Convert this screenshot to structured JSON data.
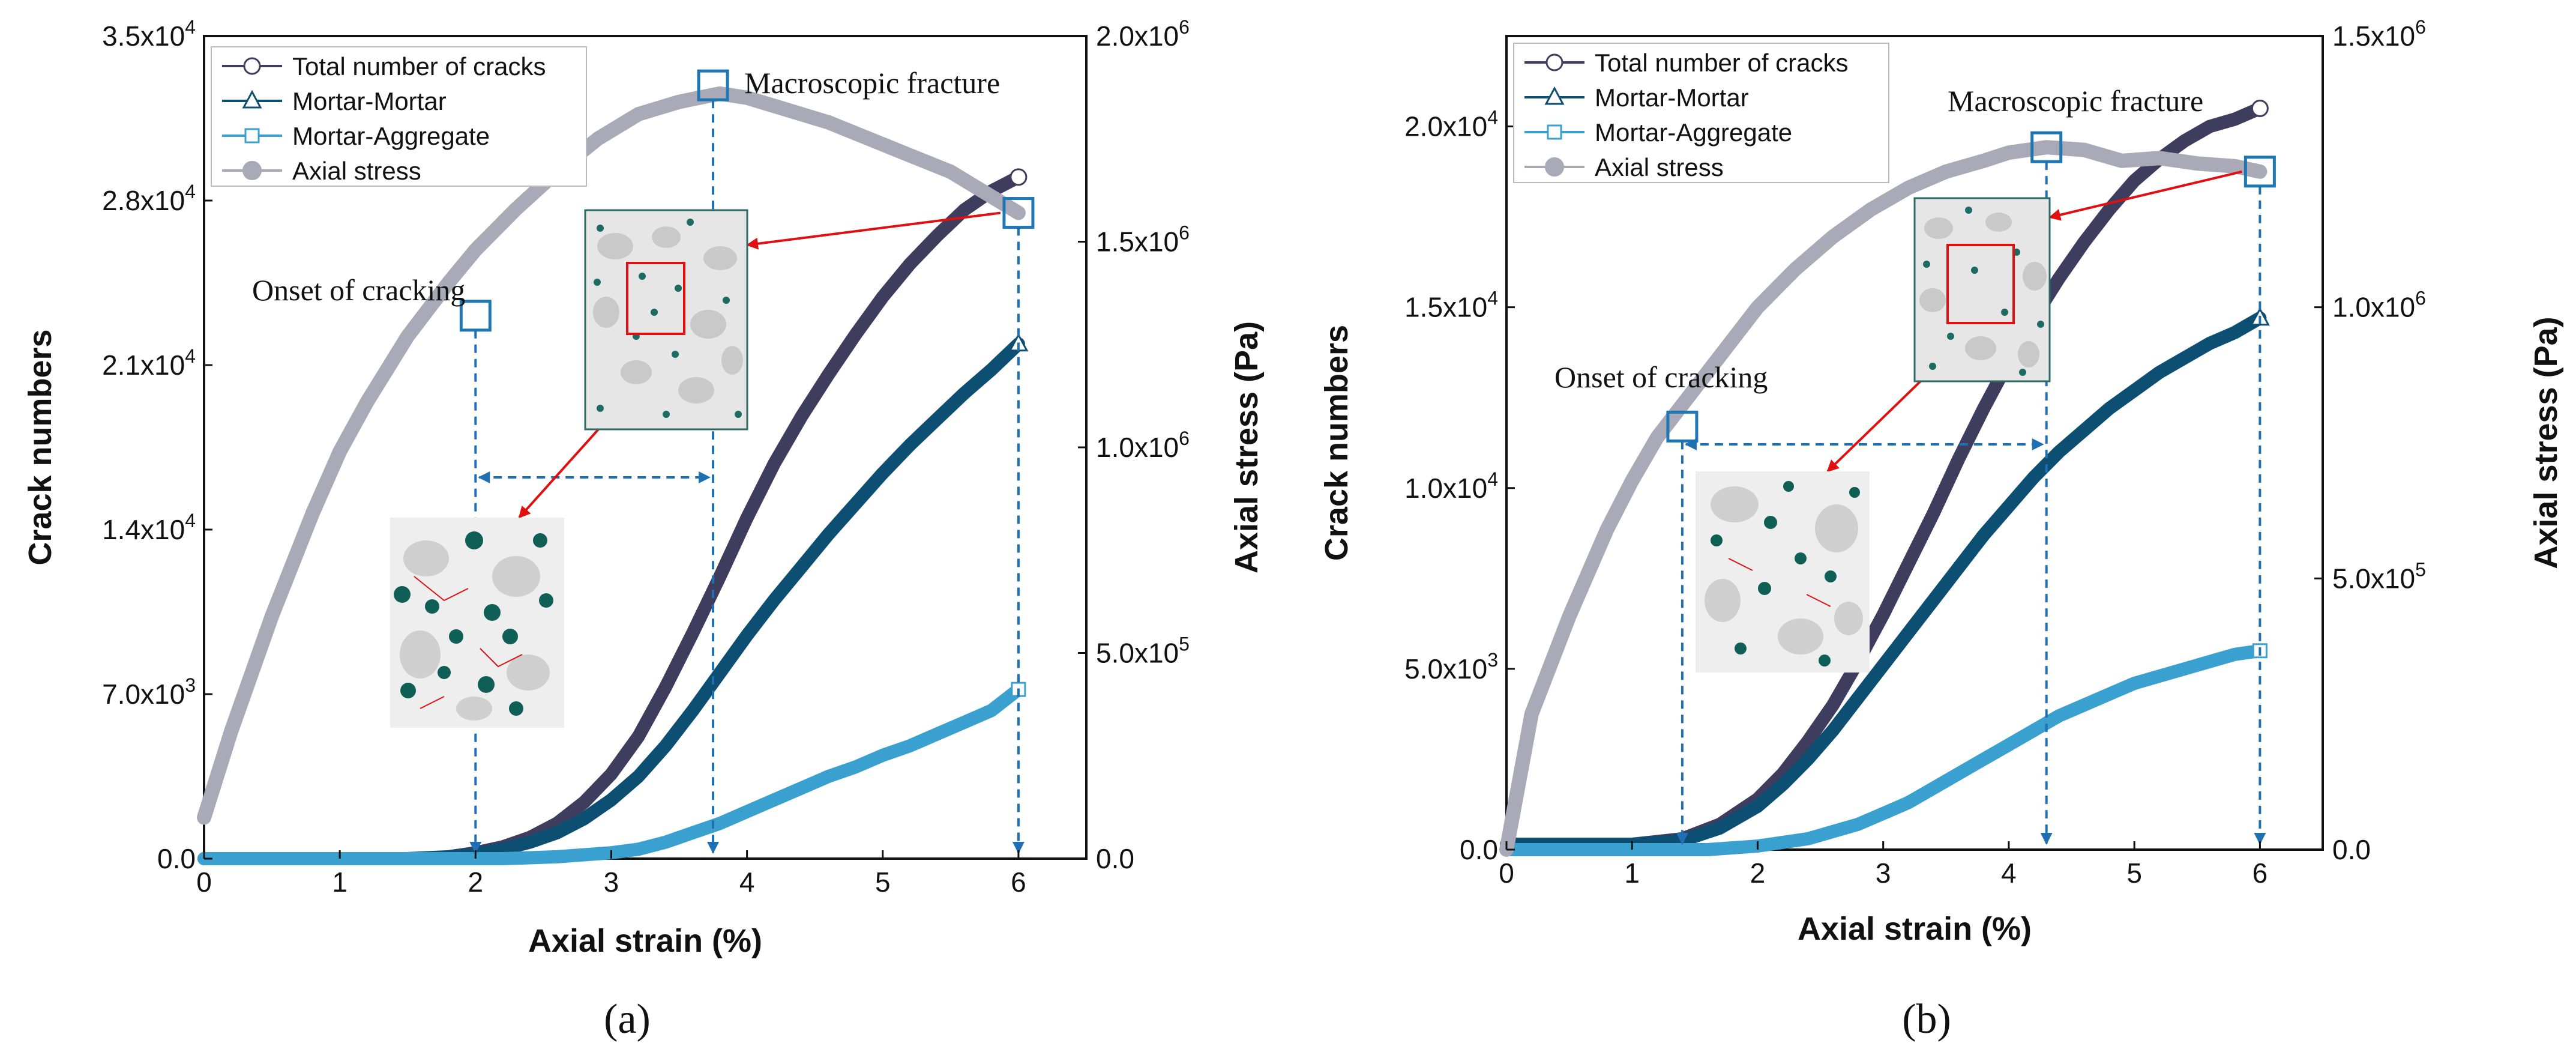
{
  "colors": {
    "total": "#3e3d5e",
    "mortar_mortar": "#0c4f73",
    "mortar_aggregate": "#3aa0d0",
    "axial_stress": "#a9a9b8",
    "guide": "#1f6fb3",
    "arrow": "#e01010",
    "marker": "#1f78b4"
  },
  "chart_data": [
    {
      "type": "line",
      "panel": "a",
      "caption": "(a)",
      "xlabel": "Axial strain (%)",
      "ylabel": "Crack numbers",
      "y2label": "Axial stress (Pa)",
      "xlim": [
        0,
        6.5
      ],
      "ylim": [
        0,
        35000
      ],
      "y2lim": [
        0,
        2000000
      ],
      "xticks": [
        "0",
        "1",
        "2",
        "3",
        "4",
        "5",
        "6"
      ],
      "yticks": [
        {
          "v": 0,
          "base": "0.0",
          "exp": ""
        },
        {
          "v": 7000,
          "base": "7.0x10",
          "exp": "3"
        },
        {
          "v": 14000,
          "base": "1.4x10",
          "exp": "4"
        },
        {
          "v": 21000,
          "base": "2.1x10",
          "exp": "4"
        },
        {
          "v": 28000,
          "base": "2.8x10",
          "exp": "4"
        },
        {
          "v": 35000,
          "base": "3.5x10",
          "exp": "4"
        }
      ],
      "y2ticks": [
        {
          "v": 0,
          "base": "0.0",
          "exp": ""
        },
        {
          "v": 500000,
          "base": "5.0x10",
          "exp": "5"
        },
        {
          "v": 1000000,
          "base": "1.0x10",
          "exp": "6"
        },
        {
          "v": 1500000,
          "base": "1.5x10",
          "exp": "6"
        },
        {
          "v": 2000000,
          "base": "2.0x10",
          "exp": "6"
        }
      ],
      "legend": [
        "Total number of cracks",
        "Mortar-Mortar",
        "Mortar-Aggregate",
        "Axial stress"
      ],
      "series": [
        {
          "name": "Total number of cracks",
          "axis": "left",
          "x": [
            0,
            1.5,
            1.8,
            2.0,
            2.2,
            2.4,
            2.6,
            2.8,
            3.0,
            3.2,
            3.4,
            3.6,
            3.8,
            4.0,
            4.2,
            4.4,
            4.6,
            4.8,
            5.0,
            5.2,
            5.4,
            5.6,
            5.8,
            6.0
          ],
          "y": [
            0,
            0,
            80,
            250,
            500,
            900,
            1500,
            2400,
            3600,
            5200,
            7300,
            9600,
            12000,
            14500,
            16800,
            18800,
            20600,
            22300,
            23900,
            25300,
            26500,
            27600,
            28400,
            29000
          ]
        },
        {
          "name": "Mortar-Mortar",
          "axis": "left",
          "x": [
            0,
            1.5,
            1.8,
            2.0,
            2.2,
            2.4,
            2.6,
            2.8,
            3.0,
            3.2,
            3.4,
            3.6,
            3.8,
            4.0,
            4.2,
            4.4,
            4.6,
            4.8,
            5.0,
            5.2,
            5.4,
            5.6,
            5.8,
            6.0
          ],
          "y": [
            0,
            0,
            70,
            200,
            400,
            700,
            1100,
            1700,
            2500,
            3500,
            4800,
            6300,
            7900,
            9500,
            11000,
            12400,
            13800,
            15100,
            16400,
            17600,
            18700,
            19800,
            20800,
            21900
          ]
        },
        {
          "name": "Mortar-Aggregate",
          "axis": "left",
          "x": [
            0,
            2.2,
            2.6,
            3.0,
            3.2,
            3.4,
            3.6,
            3.8,
            4.0,
            4.2,
            4.4,
            4.6,
            4.8,
            5.0,
            5.2,
            5.4,
            5.6,
            5.8,
            6.0
          ],
          "y": [
            0,
            0,
            80,
            250,
            400,
            700,
            1100,
            1500,
            2000,
            2500,
            3000,
            3500,
            3900,
            4400,
            4800,
            5300,
            5800,
            6300,
            7200
          ]
        },
        {
          "name": "Axial stress",
          "axis": "right",
          "x": [
            0,
            0.2,
            0.5,
            0.8,
            1.0,
            1.2,
            1.5,
            1.8,
            2.0,
            2.3,
            2.6,
            2.9,
            3.2,
            3.5,
            3.8,
            4.0,
            4.3,
            4.6,
            4.9,
            5.2,
            5.5,
            5.8,
            6.0
          ],
          "y": [
            100000,
            310000,
            590000,
            840000,
            990000,
            1110000,
            1270000,
            1400000,
            1480000,
            1580000,
            1670000,
            1750000,
            1810000,
            1840000,
            1860000,
            1850000,
            1820000,
            1790000,
            1750000,
            1710000,
            1670000,
            1610000,
            1570000
          ]
        }
      ],
      "markers": {
        "total_end": {
          "x": 6.0,
          "y": 29000
        },
        "mm_end": {
          "x": 6.0,
          "y": 21900
        },
        "ma_end": {
          "x": 6.0,
          "y": 7200
        },
        "stress_end": {
          "x": 6.0,
          "y2": 1570000
        }
      },
      "events": [
        {
          "label": "Onset of cracking",
          "x": 2.0,
          "y2": 1320000
        },
        {
          "label": "Macroscopic fracture",
          "x": 3.75,
          "y2": 1880000
        }
      ]
    },
    {
      "type": "line",
      "panel": "b",
      "caption": "(b)",
      "xlabel": "Axial strain (%)",
      "ylabel": "Crack numbers",
      "y2label": "Axial stress (Pa)",
      "xlim": [
        0,
        6.5
      ],
      "ylim": [
        0,
        22500
      ],
      "y2lim": [
        0,
        1500000
      ],
      "xticks": [
        "0",
        "1",
        "2",
        "3",
        "4",
        "5",
        "6"
      ],
      "yticks": [
        {
          "v": 0,
          "base": "0.0",
          "exp": ""
        },
        {
          "v": 5000,
          "base": "5.0x10",
          "exp": "3"
        },
        {
          "v": 10000,
          "base": "1.0x10",
          "exp": "4"
        },
        {
          "v": 15000,
          "base": "1.5x10",
          "exp": "4"
        },
        {
          "v": 20000,
          "base": "2.0x10",
          "exp": "4"
        }
      ],
      "y2ticks": [
        {
          "v": 0,
          "base": "0.0",
          "exp": ""
        },
        {
          "v": 500000,
          "base": "5.0x10",
          "exp": "5"
        },
        {
          "v": 1000000,
          "base": "1.0x10",
          "exp": "6"
        },
        {
          "v": 1500000,
          "base": "1.5x10",
          "exp": "6"
        }
      ],
      "legend": [
        "Total number of cracks",
        "Mortar-Mortar",
        "Mortar-Aggregate",
        "Axial stress"
      ],
      "series": [
        {
          "name": "Total number of cracks",
          "axis": "left",
          "x": [
            0,
            1.0,
            1.4,
            1.7,
            2.0,
            2.2,
            2.4,
            2.6,
            2.8,
            3.0,
            3.2,
            3.4,
            3.6,
            3.8,
            4.0,
            4.2,
            4.4,
            4.6,
            4.8,
            5.0,
            5.2,
            5.4,
            5.6,
            5.8,
            6.0
          ],
          "y": [
            150,
            150,
            300,
            700,
            1400,
            2100,
            3000,
            4000,
            5200,
            6500,
            7900,
            9300,
            10800,
            12200,
            13500,
            14700,
            15800,
            16800,
            17700,
            18500,
            19100,
            19600,
            20000,
            20200,
            20500
          ]
        },
        {
          "name": "Mortar-Mortar",
          "axis": "left",
          "x": [
            0,
            1.0,
            1.4,
            1.7,
            2.0,
            2.2,
            2.4,
            2.6,
            2.8,
            3.0,
            3.2,
            3.4,
            3.6,
            3.8,
            4.0,
            4.2,
            4.4,
            4.6,
            4.8,
            5.0,
            5.2,
            5.4,
            5.6,
            5.8,
            6.0
          ],
          "y": [
            150,
            150,
            250,
            600,
            1200,
            1800,
            2500,
            3300,
            4200,
            5100,
            6000,
            6900,
            7800,
            8700,
            9500,
            10300,
            11000,
            11600,
            12200,
            12700,
            13200,
            13600,
            14000,
            14300,
            14700
          ]
        },
        {
          "name": "Mortar-Aggregate",
          "axis": "left",
          "x": [
            0,
            1.6,
            2.0,
            2.4,
            2.8,
            3.0,
            3.2,
            3.4,
            3.6,
            3.8,
            4.0,
            4.2,
            4.4,
            4.6,
            4.8,
            5.0,
            5.2,
            5.4,
            5.6,
            5.8,
            6.0
          ],
          "y": [
            0,
            0,
            100,
            300,
            700,
            1000,
            1300,
            1700,
            2100,
            2500,
            2900,
            3300,
            3700,
            4000,
            4300,
            4600,
            4800,
            5000,
            5200,
            5400,
            5500
          ]
        },
        {
          "name": "Axial stress",
          "axis": "right",
          "x": [
            0,
            0.2,
            0.5,
            0.8,
            1.0,
            1.2,
            1.5,
            1.8,
            2.0,
            2.3,
            2.6,
            2.9,
            3.2,
            3.5,
            3.8,
            4.0,
            4.3,
            4.6,
            4.9,
            5.2,
            5.5,
            5.8,
            6.0
          ],
          "y": [
            0,
            250000,
            430000,
            590000,
            680000,
            760000,
            850000,
            940000,
            1000000,
            1070000,
            1130000,
            1180000,
            1220000,
            1250000,
            1270000,
            1285000,
            1295000,
            1290000,
            1270000,
            1275000,
            1265000,
            1260000,
            1250000
          ]
        }
      ],
      "markers": {
        "total_end": {
          "x": 6.0,
          "y": 20500
        },
        "mm_end": {
          "x": 6.0,
          "y": 14700
        },
        "ma_end": {
          "x": 6.0,
          "y": 5500
        },
        "stress_end": {
          "x": 6.0,
          "y2": 1250000
        }
      },
      "events": [
        {
          "label": "Onset of cracking",
          "x": 1.4,
          "y2": 780000
        },
        {
          "label": "Macroscopic fracture",
          "x": 4.3,
          "y2": 1295000
        }
      ]
    }
  ]
}
